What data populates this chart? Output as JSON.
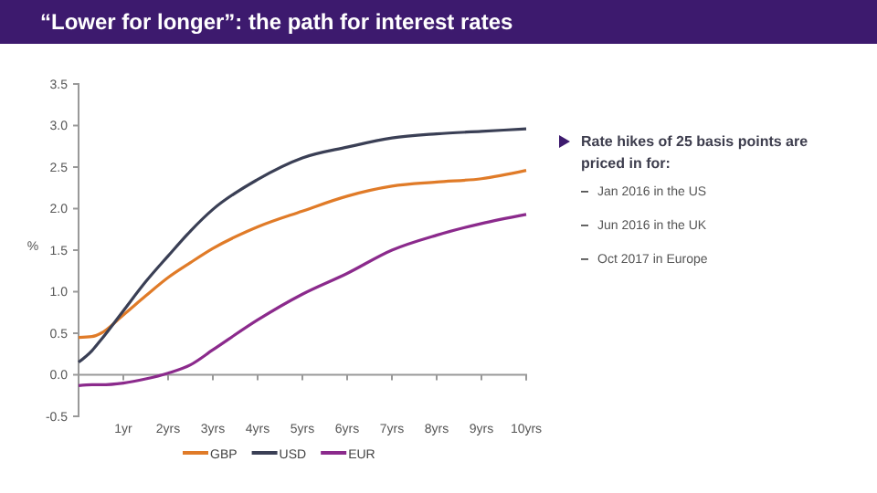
{
  "chart_data": {
    "type": "line",
    "title": "“Lower for longer”: the path for interest rates",
    "ylabel": "%",
    "xlim": [
      0,
      10
    ],
    "xticks": [
      {
        "value": 1,
        "label": "1yr"
      },
      {
        "value": 2,
        "label": "2yrs"
      },
      {
        "value": 3,
        "label": "3yrs"
      },
      {
        "value": 4,
        "label": "4yrs"
      },
      {
        "value": 5,
        "label": "5yrs"
      },
      {
        "value": 6,
        "label": "6yrs"
      },
      {
        "value": 7,
        "label": "7yrs"
      },
      {
        "value": 8,
        "label": "8yrs"
      },
      {
        "value": 9,
        "label": "9yrs"
      },
      {
        "value": 10,
        "label": "10yrs"
      }
    ],
    "ylim": [
      -0.5,
      3.5
    ],
    "yticks": [
      {
        "value": -0.5,
        "label": "-0.5"
      },
      {
        "value": 0,
        "label": "0.0"
      },
      {
        "value": 0.5,
        "label": "0.5"
      },
      {
        "value": 1,
        "label": "1.0"
      },
      {
        "value": 1.5,
        "label": "1.5"
      },
      {
        "value": 2,
        "label": "2.0"
      },
      {
        "value": 2.5,
        "label": "2.5"
      },
      {
        "value": 3,
        "label": "3.0"
      },
      {
        "value": 3.5,
        "label": "3.5"
      }
    ],
    "x": [
      0,
      0.3,
      0.5,
      1,
      1.5,
      2,
      2.5,
      3,
      4,
      5,
      6,
      7,
      8,
      9,
      10
    ],
    "series": [
      {
        "name": "GBP",
        "color": "#e07b28",
        "values": [
          0.45,
          0.46,
          0.5,
          0.72,
          0.95,
          1.17,
          1.35,
          1.52,
          1.78,
          1.97,
          2.15,
          2.27,
          2.32,
          2.36,
          2.46
        ]
      },
      {
        "name": "USD",
        "color": "#3a3f55",
        "values": [
          0.15,
          0.29,
          0.42,
          0.77,
          1.12,
          1.43,
          1.73,
          1.99,
          2.35,
          2.61,
          2.74,
          2.85,
          2.9,
          2.93,
          2.96
        ]
      },
      {
        "name": "EUR",
        "color": "#8b2a8c",
        "values": [
          -0.13,
          -0.12,
          -0.12,
          -0.1,
          -0.05,
          0.02,
          0.12,
          0.3,
          0.66,
          0.97,
          1.22,
          1.5,
          1.68,
          1.82,
          1.93
        ]
      }
    ],
    "legend": "bottom",
    "line_style": "solid",
    "marker": "none",
    "annotations": [
      "Rate hikes of 25 basis points are priced in for:",
      "Jan 2016 in the US",
      "Jun 2016 in the UK",
      "Oct 2017 in Europe"
    ]
  }
}
